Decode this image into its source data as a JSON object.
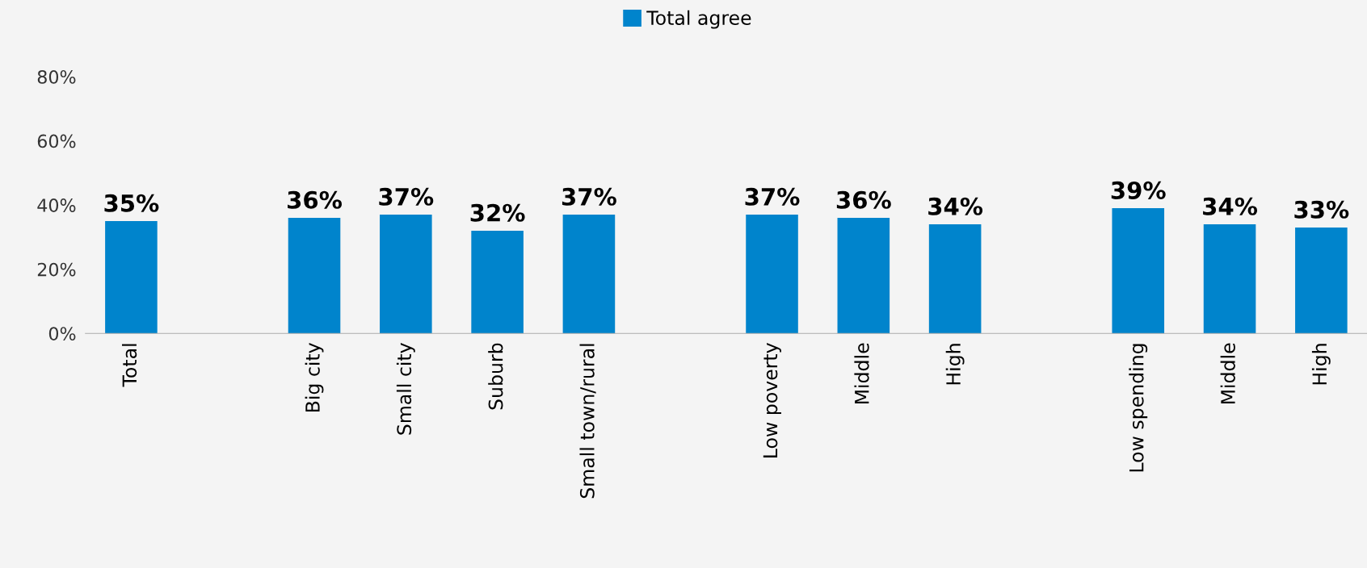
{
  "chart_data": {
    "type": "bar",
    "categories": [
      "Total",
      null,
      "Big city",
      "Small city",
      "Suburb",
      "Small town/rural",
      null,
      "Low poverty",
      "Middle",
      "High",
      null,
      "Low spending",
      "Middle",
      "High"
    ],
    "series": [
      {
        "name": "Total agree",
        "color": "#0084cc",
        "values": [
          35,
          null,
          36,
          37,
          32,
          37,
          null,
          37,
          36,
          34,
          null,
          39,
          34,
          33
        ],
        "value_labels": [
          "35%",
          null,
          "36%",
          "37%",
          "32%",
          "37%",
          null,
          "37%",
          "36%",
          "34%",
          null,
          "39%",
          "34%",
          "33%"
        ]
      }
    ],
    "ylim": [
      0,
      80
    ],
    "yticks": [
      {
        "value": 0,
        "label": "0%"
      },
      {
        "value": 20,
        "label": "20%"
      },
      {
        "value": 40,
        "label": "40%"
      },
      {
        "value": 60,
        "label": "60%"
      },
      {
        "value": 80,
        "label": "80%"
      }
    ],
    "grid": false,
    "legend": "top"
  }
}
